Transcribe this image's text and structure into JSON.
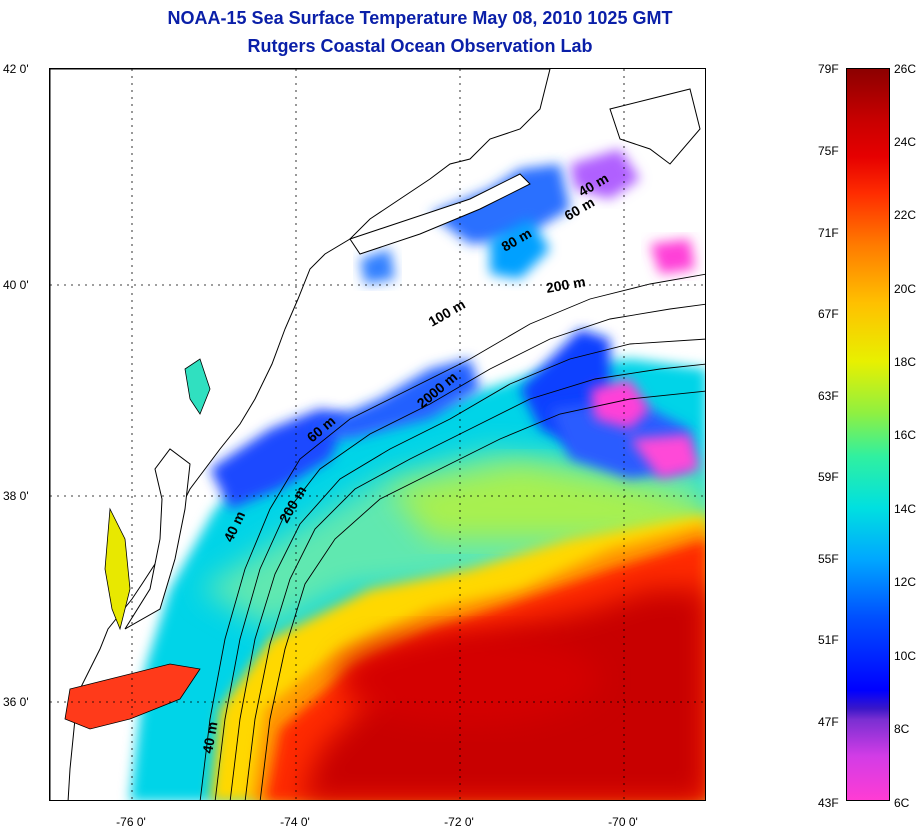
{
  "title_line1": "NOAA-15 Sea Surface Temperature May 08, 2010 1025 GMT",
  "title_line2": "Rutgers Coastal Ocean Observation Lab",
  "lat_ticks": [
    "42 0'",
    "40 0'",
    "38 0'",
    "36 0'"
  ],
  "lon_ticks": [
    "-76 0'",
    "-74 0'",
    "-72 0'",
    "-70 0'"
  ],
  "isobath_labels": [
    "40 m",
    "60 m",
    "80 m",
    "200 m",
    "100 m",
    "2000 m",
    "60 m",
    "40 m",
    "200 m",
    "40 m"
  ],
  "colorbar": {
    "fahrenheit": [
      "79F",
      "75F",
      "71F",
      "67F",
      "63F",
      "59F",
      "55F",
      "51F",
      "47F",
      "43F"
    ],
    "celsius": [
      "26C",
      "24C",
      "22C",
      "20C",
      "18C",
      "16C",
      "14C",
      "12C",
      "10C",
      "8C",
      "6C"
    ]
  },
  "colors": {
    "title": "#0a1fa8",
    "warm_core": "#c80000",
    "warm": "#ff2a00",
    "cool_shelf": "#00c8f0",
    "cold": "#0038ff",
    "cloud_mask": "#ff40d8",
    "mid": "#9cf040"
  }
}
